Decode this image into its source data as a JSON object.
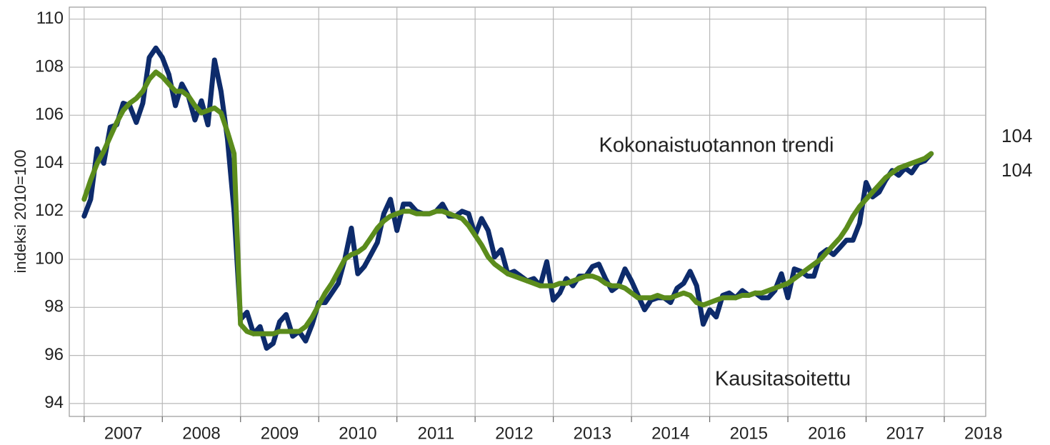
{
  "chart_data": {
    "type": "line",
    "ylabel": "indeksi 2010=100",
    "annotations": [
      {
        "text": "Kokonaistuotannon trendi",
        "series": 1
      },
      {
        "text": "Kausitasoitettu",
        "series": 0
      }
    ],
    "xlim": [
      2006.81,
      2018.53
    ],
    "ylim": [
      93.46,
      110.5
    ],
    "yticks": [
      94,
      96,
      98,
      100,
      102,
      104,
      106,
      108,
      110
    ],
    "xgrid": [
      2007,
      2008,
      2009,
      2010,
      2011,
      2012,
      2013,
      2014,
      2015,
      2016,
      2017,
      2018
    ],
    "xticks": [
      {
        "value": 2007.5,
        "label": "2007"
      },
      {
        "value": 2008.5,
        "label": "2008"
      },
      {
        "value": 2009.5,
        "label": "2009"
      },
      {
        "value": 2010.5,
        "label": "2010"
      },
      {
        "value": 2011.5,
        "label": "2011"
      },
      {
        "value": 2012.5,
        "label": "2012"
      },
      {
        "value": 2013.5,
        "label": "2013"
      },
      {
        "value": 2014.5,
        "label": "2014"
      },
      {
        "value": 2015.5,
        "label": "2015"
      },
      {
        "value": 2016.5,
        "label": "2016"
      },
      {
        "value": 2017.5,
        "label": "2017"
      },
      {
        "value": 2018.5,
        "label": "2018"
      }
    ],
    "grid": true,
    "x": [
      2007,
      2007.083,
      2007.167,
      2007.25,
      2007.333,
      2007.417,
      2007.5,
      2007.583,
      2007.667,
      2007.75,
      2007.833,
      2007.917,
      2008,
      2008.083,
      2008.167,
      2008.25,
      2008.333,
      2008.417,
      2008.5,
      2008.583,
      2008.667,
      2008.75,
      2008.833,
      2008.917,
      2009,
      2009.083,
      2009.167,
      2009.25,
      2009.333,
      2009.417,
      2009.5,
      2009.583,
      2009.667,
      2009.75,
      2009.833,
      2009.917,
      2010,
      2010.083,
      2010.167,
      2010.25,
      2010.333,
      2010.417,
      2010.5,
      2010.583,
      2010.667,
      2010.75,
      2010.833,
      2010.917,
      2011,
      2011.083,
      2011.167,
      2011.25,
      2011.333,
      2011.417,
      2011.5,
      2011.583,
      2011.667,
      2011.75,
      2011.833,
      2011.917,
      2012,
      2012.083,
      2012.167,
      2012.25,
      2012.333,
      2012.417,
      2012.5,
      2012.583,
      2012.667,
      2012.75,
      2012.833,
      2012.917,
      2013,
      2013.083,
      2013.167,
      2013.25,
      2013.333,
      2013.417,
      2013.5,
      2013.583,
      2013.667,
      2013.75,
      2013.833,
      2013.917,
      2014,
      2014.083,
      2014.167,
      2014.25,
      2014.333,
      2014.417,
      2014.5,
      2014.583,
      2014.667,
      2014.75,
      2014.833,
      2014.917,
      2015,
      2015.083,
      2015.167,
      2015.25,
      2015.333,
      2015.417,
      2015.5,
      2015.583,
      2015.667,
      2015.75,
      2015.833,
      2015.917,
      2016,
      2016.083,
      2016.167,
      2016.25,
      2016.333,
      2016.417,
      2016.5,
      2016.583,
      2016.667,
      2016.75,
      2016.833,
      2016.917,
      2017,
      2017.083,
      2017.167,
      2017.25,
      2017.333,
      2017.417,
      2017.5,
      2017.583,
      2017.667,
      2017.75,
      2017.833
    ],
    "series": [
      {
        "name": "Kausitasoitettu",
        "color": "#0d2b6b",
        "end_label": "104",
        "values": [
          101.8,
          102.5,
          104.6,
          104.0,
          105.5,
          105.6,
          106.5,
          106.4,
          105.7,
          106.5,
          108.4,
          108.8,
          108.4,
          107.7,
          106.4,
          107.3,
          106.8,
          105.8,
          106.6,
          105.6,
          108.3,
          107.0,
          105.0,
          102.0,
          97.5,
          97.8,
          96.9,
          97.2,
          96.3,
          96.5,
          97.4,
          97.7,
          96.8,
          97.0,
          96.6,
          97.3,
          98.2,
          98.2,
          98.6,
          99.0,
          100.0,
          101.3,
          99.4,
          99.7,
          100.2,
          100.7,
          101.9,
          102.5,
          101.2,
          102.3,
          102.3,
          102.0,
          101.9,
          101.9,
          102.0,
          102.3,
          101.8,
          101.8,
          102.0,
          101.9,
          101.0,
          101.7,
          101.2,
          100.1,
          100.4,
          99.4,
          99.5,
          99.3,
          99.1,
          99.2,
          98.9,
          99.9,
          98.3,
          98.6,
          99.2,
          98.9,
          99.3,
          99.3,
          99.7,
          99.8,
          99.2,
          98.7,
          98.9,
          99.6,
          99.1,
          98.5,
          97.9,
          98.3,
          98.4,
          98.4,
          98.2,
          98.8,
          99.0,
          99.5,
          98.9,
          97.3,
          97.9,
          97.6,
          98.5,
          98.6,
          98.4,
          98.7,
          98.5,
          98.6,
          98.4,
          98.4,
          98.7,
          99.4,
          98.4,
          99.6,
          99.5,
          99.3,
          99.3,
          100.2,
          100.4,
          100.2,
          100.5,
          100.8,
          100.8,
          101.5,
          103.2,
          102.6,
          102.8,
          103.3,
          103.7,
          103.5,
          103.8,
          103.6,
          104.0,
          104.1,
          104.4
        ]
      },
      {
        "name": "Kokonaistuotannon trendi",
        "color": "#5b8c1c",
        "end_label": "104",
        "values": [
          102.5,
          103.3,
          104.0,
          104.5,
          105.1,
          105.7,
          106.2,
          106.5,
          106.7,
          107.0,
          107.5,
          107.8,
          107.6,
          107.3,
          107.0,
          107.0,
          106.8,
          106.4,
          106.1,
          106.2,
          106.3,
          106.1,
          105.3,
          104.4,
          97.3,
          97.0,
          96.9,
          96.9,
          96.9,
          96.9,
          97.0,
          97.0,
          97.0,
          97.0,
          97.2,
          97.6,
          98.1,
          98.6,
          99.0,
          99.5,
          100.0,
          100.2,
          100.3,
          100.5,
          100.9,
          101.3,
          101.6,
          101.8,
          101.9,
          102.0,
          102.0,
          101.9,
          101.9,
          101.9,
          102.0,
          102.0,
          101.9,
          101.8,
          101.7,
          101.4,
          101.0,
          100.6,
          100.1,
          99.8,
          99.6,
          99.4,
          99.3,
          99.2,
          99.1,
          99.0,
          98.9,
          98.9,
          98.9,
          99.0,
          99.0,
          99.1,
          99.2,
          99.3,
          99.3,
          99.2,
          99.0,
          98.9,
          98.9,
          98.8,
          98.6,
          98.4,
          98.4,
          98.4,
          98.5,
          98.4,
          98.4,
          98.5,
          98.6,
          98.5,
          98.2,
          98.1,
          98.2,
          98.3,
          98.4,
          98.4,
          98.4,
          98.5,
          98.5,
          98.6,
          98.6,
          98.7,
          98.8,
          98.9,
          99.0,
          99.2,
          99.4,
          99.6,
          99.8,
          100.0,
          100.3,
          100.6,
          100.9,
          101.3,
          101.8,
          102.2,
          102.5,
          102.8,
          103.1,
          103.4,
          103.6,
          103.8,
          103.9,
          104.0,
          104.1,
          104.2,
          104.4
        ]
      }
    ]
  }
}
